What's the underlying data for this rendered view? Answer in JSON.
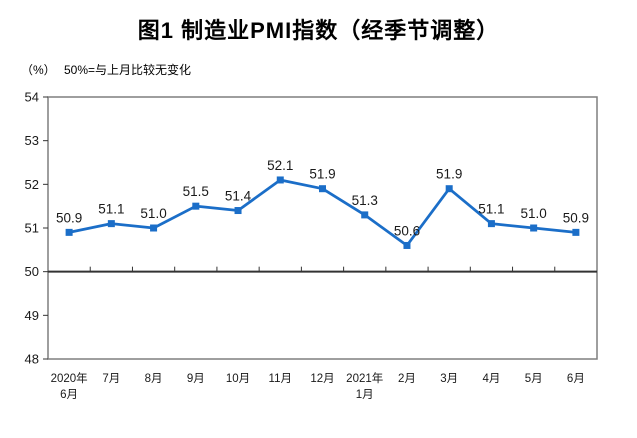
{
  "chart_data": {
    "type": "line",
    "title": "图1 制造业PMI指数（经季节调整）",
    "unit_label": "（%）",
    "annotation": "50%=与上月比较无变化",
    "categories": [
      "2020年6月",
      "7月",
      "8月",
      "9月",
      "10月",
      "11月",
      "12月",
      "2021年1月",
      "2月",
      "3月",
      "4月",
      "5月",
      "6月"
    ],
    "category_label_lines": [
      [
        "2020年",
        "6月"
      ],
      [
        "7月"
      ],
      [
        "8月"
      ],
      [
        "9月"
      ],
      [
        "10月"
      ],
      [
        "11月"
      ],
      [
        "12月"
      ],
      [
        "2021年",
        "1月"
      ],
      [
        "2月"
      ],
      [
        "3月"
      ],
      [
        "4月"
      ],
      [
        "5月"
      ],
      [
        "6月"
      ]
    ],
    "values": [
      50.9,
      51.1,
      51.0,
      51.5,
      51.4,
      52.1,
      51.9,
      51.3,
      50.6,
      51.9,
      51.1,
      51.0,
      50.9
    ],
    "ylim": [
      48,
      54
    ],
    "yticks": [
      48,
      49,
      50,
      51,
      52,
      53,
      54
    ],
    "baseline": 50,
    "grid": false,
    "legend_position": "none",
    "colors": {
      "line": "#1B6EC8",
      "marker": "#1B6EC8",
      "frame": "#7F7F7F",
      "axis": "#333333",
      "text": "#1A1A1A"
    }
  }
}
